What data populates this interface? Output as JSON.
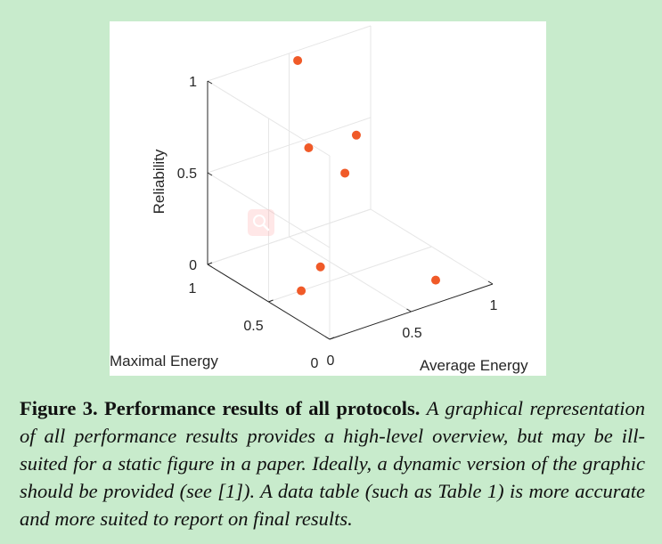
{
  "colors": {
    "background": "#c8ebcc",
    "panel": "#ffffff",
    "grid": "#e6e6e6",
    "axis": "#262626",
    "marker": "#f05a28"
  },
  "chart_data": {
    "type": "scatter3d",
    "title": "",
    "xlabel": "Average Energy",
    "ylabel": "Maximal Energy",
    "zlabel": "Reliability",
    "xlim": [
      0,
      1
    ],
    "ylim": [
      0,
      1
    ],
    "zlim": [
      0,
      1
    ],
    "x_ticks": [
      "0",
      "0.5",
      "1"
    ],
    "y_ticks": [
      "0",
      "0.5",
      "1"
    ],
    "z_ticks": [
      "0",
      "0.5",
      "1"
    ],
    "grid": true,
    "points": [
      {
        "x": 0.5,
        "y": 0.93,
        "z": 0.99
      },
      {
        "x": 0.56,
        "y": 0.92,
        "z": 0.5
      },
      {
        "x": 0.83,
        "y": 0.89,
        "z": 0.5
      },
      {
        "x": 0.67,
        "y": 0.77,
        "z": 0.39
      },
      {
        "x": 0.43,
        "y": 0.65,
        "z": 0.0
      },
      {
        "x": 0.2,
        "y": 0.5,
        "z": 0.0
      },
      {
        "x": 0.8,
        "y": 0.2,
        "z": 0.0
      }
    ]
  },
  "toolbar": {
    "zoom_icon": "magnifier-icon"
  },
  "caption": {
    "title": "Figure 3. Performance results of all protocols.",
    "body": "A graphical representation of all performance results provides a high-level overview, but may be ill-suited for a static figure in a paper. Ideally, a dynamic version of the graphic should be provided (see [1]). A data table (such as Table 1) is more accurate and more suited to report on final results."
  }
}
